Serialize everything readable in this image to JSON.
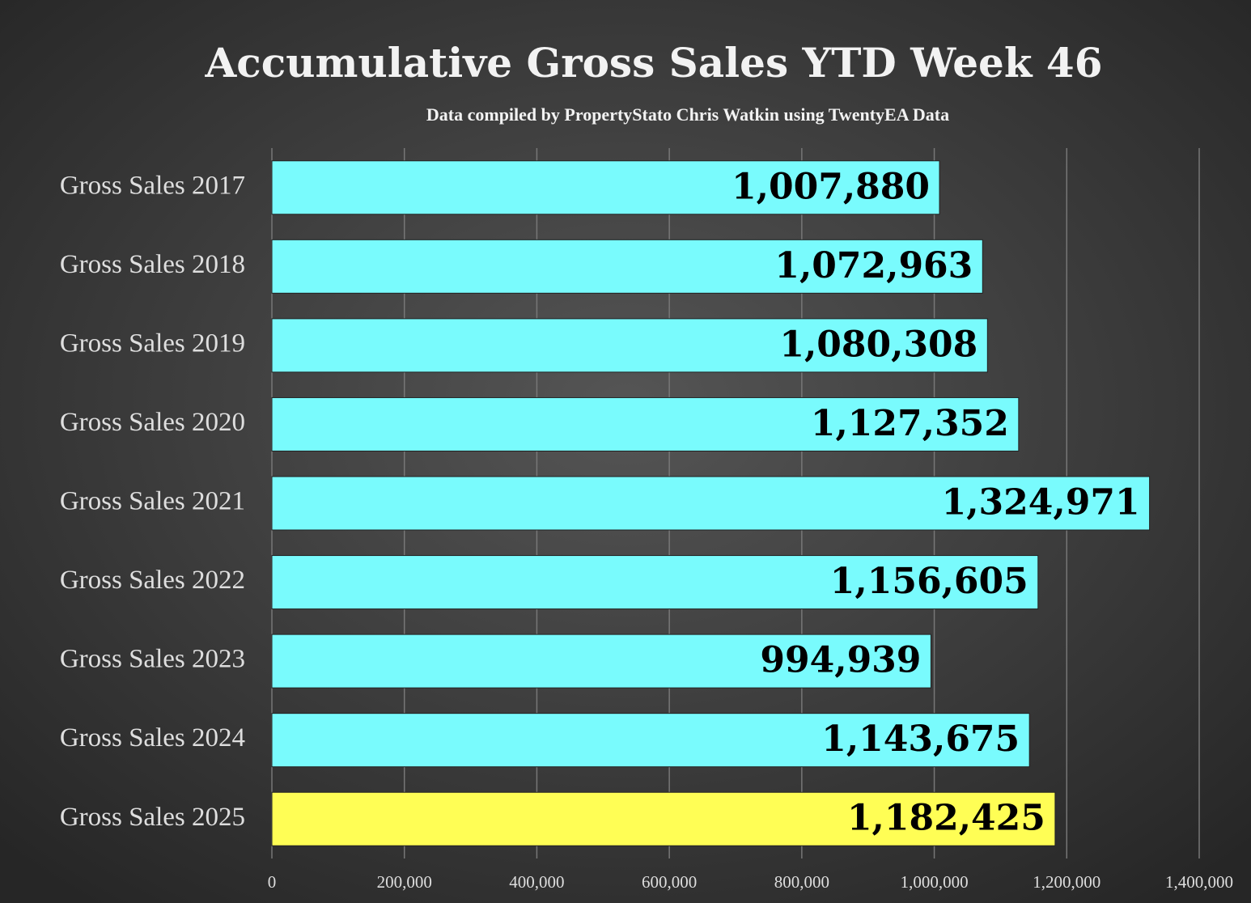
{
  "chart_data": {
    "type": "hbar",
    "title": "Accumulative Gross Sales YTD Week 46",
    "subtitle": "Data compiled by PropertyStato Chris Watkin using TwentyEA Data",
    "categories": [
      "Gross Sales 2017",
      "Gross Sales 2018",
      "Gross Sales 2019",
      "Gross Sales 2020",
      "Gross Sales 2021",
      "Gross Sales 2022",
      "Gross Sales 2023",
      "Gross Sales 2024",
      "Gross Sales 2025"
    ],
    "values": [
      1007880,
      1072963,
      1080308,
      1127352,
      1324971,
      1156605,
      994939,
      1143675,
      1182425
    ],
    "value_labels": [
      "1,007,880",
      "1,072,963",
      "1,080,308",
      "1,127,352",
      "1,324,971",
      "1,156,605",
      "994,939",
      "1,143,675",
      "1,182,425"
    ],
    "colors": [
      "#79fbfd",
      "#79fbfd",
      "#79fbfd",
      "#79fbfd",
      "#79fbfd",
      "#79fbfd",
      "#79fbfd",
      "#79fbfd",
      "#fffe55"
    ],
    "xlim": [
      0,
      1400000
    ],
    "xticks": [
      0,
      {
        "value": 200000,
        "label": "200,000"
      },
      {
        "value": 400000,
        "label": "400,000"
      },
      {
        "value": 600000,
        "label": "600,000"
      },
      {
        "value": 800000,
        "label": "800,000"
      },
      {
        "value": 1000000,
        "label": "1,000,000"
      },
      {
        "value": 1200000,
        "label": "1,200,000"
      },
      {
        "value": 1400000,
        "label": "1,400,000"
      }
    ],
    "grid": true
  }
}
